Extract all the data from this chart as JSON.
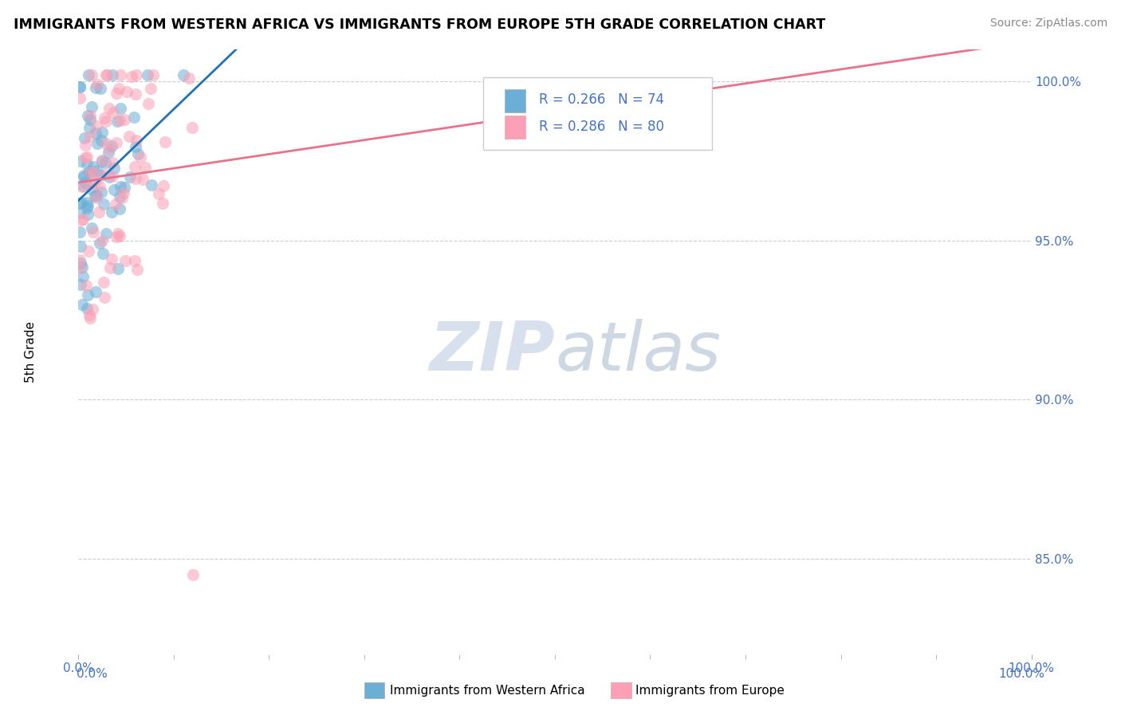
{
  "title": "IMMIGRANTS FROM WESTERN AFRICA VS IMMIGRANTS FROM EUROPE 5TH GRADE CORRELATION CHART",
  "source": "Source: ZipAtlas.com",
  "ylabel": "5th Grade",
  "legend_label1": "Immigrants from Western Africa",
  "legend_label2": "Immigrants from Europe",
  "R1": 0.266,
  "N1": 74,
  "R2": 0.286,
  "N2": 80,
  "color1": "#6baed6",
  "color2": "#fa9fb5",
  "trendline_color1": "#2171b5",
  "trendline_color2": "#e8728a",
  "watermark_color": "#c8d4e8",
  "tick_color": "#4472c4",
  "ytick_vals": [
    0.85,
    0.9,
    0.95,
    1.0
  ],
  "ytick_labels": [
    "85.0%",
    "90.0%",
    "95.0%",
    "100.0%"
  ],
  "xlim": [
    0.0,
    1.0
  ],
  "ylim": [
    0.82,
    1.01
  ]
}
